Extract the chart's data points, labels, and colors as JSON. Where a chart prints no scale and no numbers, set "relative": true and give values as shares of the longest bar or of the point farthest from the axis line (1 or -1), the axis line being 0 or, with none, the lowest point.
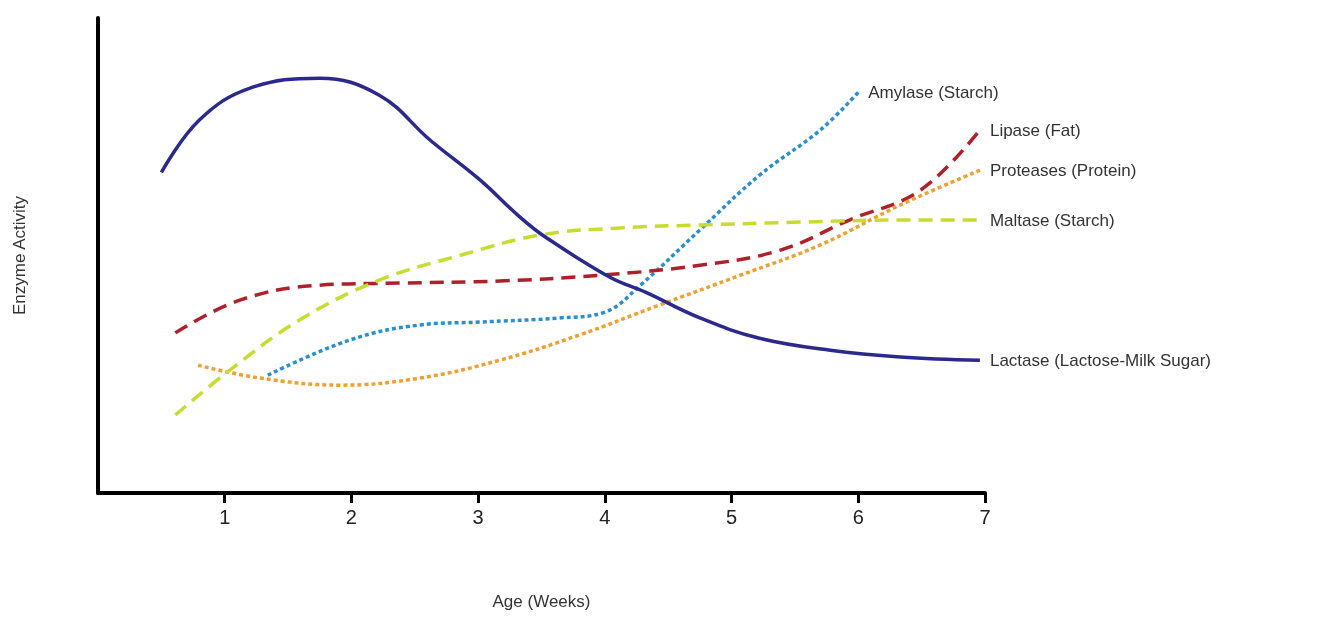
{
  "chart_data": {
    "type": "line",
    "relative": true,
    "xlabel": "Age (Weeks)",
    "ylabel": "Enzyme Activity",
    "xlim": [
      0,
      7
    ],
    "xticks": [
      1,
      2,
      3,
      4,
      5,
      6,
      7
    ],
    "grid": false,
    "legend": false,
    "marker": "none",
    "tick_labels": "x",
    "series": [
      {
        "name": "Amylase (Starch)",
        "color": "#2a8fd0",
        "line_style": "dotted",
        "x": [
          1.34,
          1.99,
          2.54,
          3.01,
          3.64,
          4.0,
          4.28,
          4.75,
          5.22,
          5.7,
          6.0
        ],
        "values": [
          0.284,
          0.369,
          0.405,
          0.412,
          0.422,
          0.436,
          0.501,
          0.634,
          0.766,
          0.875,
          0.966
        ]
      },
      {
        "name": "Lipase (Fat)",
        "color": "#b0202a",
        "line_style": "dashed",
        "x": [
          0.61,
          1.12,
          1.75,
          2.38,
          3.17,
          3.96,
          4.75,
          5.38,
          5.93,
          6.49,
          6.96
        ],
        "values": [
          0.386,
          0.465,
          0.501,
          0.506,
          0.511,
          0.525,
          0.549,
          0.585,
          0.658,
          0.73,
          0.875
        ]
      },
      {
        "name": "Proteases (Protein)",
        "color": "#f0a030",
        "line_style": "dotted",
        "x": [
          0.79,
          1.28,
          1.91,
          2.54,
          3.17,
          3.8,
          4.43,
          5.07,
          5.7,
          6.33,
          6.96
        ],
        "values": [
          0.308,
          0.277,
          0.26,
          0.277,
          0.32,
          0.381,
          0.453,
          0.525,
          0.598,
          0.694,
          0.778
        ]
      },
      {
        "name": "Maltase (Starch)",
        "color": "#c8dc30",
        "line_style": "dashed",
        "x": [
          0.61,
          1.04,
          1.59,
          2.22,
          2.86,
          3.49,
          4.12,
          4.75,
          5.54,
          6.33,
          6.96
        ],
        "values": [
          0.188,
          0.296,
          0.417,
          0.513,
          0.573,
          0.622,
          0.639,
          0.646,
          0.653,
          0.658,
          0.658
        ]
      },
      {
        "name": "Lactase (Lactose-Milk Sugar)",
        "color": "#2b2a8c",
        "line_style": "solid",
        "x": [
          0.5,
          0.8,
          1.2,
          1.75,
          2.22,
          2.62,
          3.01,
          3.33,
          3.53,
          4.04,
          4.32,
          4.75,
          5.22,
          5.78,
          6.33,
          6.96
        ],
        "values": [
          0.773,
          0.899,
          0.976,
          1.0,
          0.959,
          0.851,
          0.756,
          0.665,
          0.617,
          0.52,
          0.484,
          0.422,
          0.373,
          0.344,
          0.328,
          0.32
        ]
      }
    ]
  }
}
